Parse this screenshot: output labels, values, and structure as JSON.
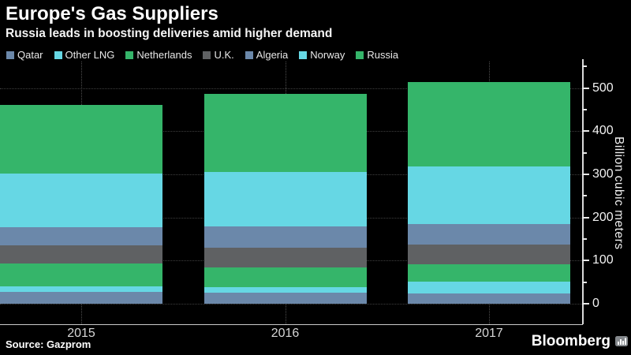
{
  "header": {
    "title": "Europe's Gas Suppliers",
    "subtitle": "Russia leads in boosting deliveries amid higher demand"
  },
  "palette": {
    "slate_blue": "#6b88aa",
    "cyan": "#66d7e4",
    "green": "#35b56a",
    "gray": "#5f6163",
    "background": "#000000",
    "gridline": "#3f3f3f",
    "axis": "#d9d9d9"
  },
  "chart_data": {
    "type": "bar",
    "stacked": true,
    "title": "Europe's Gas Suppliers",
    "subtitle": "Russia leads in boosting deliveries amid higher demand",
    "categories": [
      "2015",
      "2016",
      "2017"
    ],
    "series": [
      {
        "name": "Qatar",
        "color": "#6b88aa",
        "values": [
          27,
          25,
          24
        ]
      },
      {
        "name": "Other LNG",
        "color": "#66d7e4",
        "values": [
          14,
          14,
          28
        ]
      },
      {
        "name": "Netherlands",
        "color": "#35b56a",
        "values": [
          52,
          46,
          39
        ]
      },
      {
        "name": "U.K.",
        "color": "#5f6163",
        "values": [
          43,
          44,
          46
        ]
      },
      {
        "name": "Algeria",
        "color": "#6b88aa",
        "values": [
          41,
          51,
          47
        ]
      },
      {
        "name": "Norway",
        "color": "#66d7e4",
        "values": [
          124,
          125,
          134
        ]
      },
      {
        "name": "Russia",
        "color": "#35b56a",
        "values": [
          160,
          181,
          196
        ]
      }
    ],
    "totals": [
      461,
      486,
      514
    ],
    "xlabel": "",
    "ylabel": "Billion cubic meters",
    "ylim": [
      0,
      550
    ],
    "yticks": [
      0,
      100,
      200,
      300,
      400,
      500
    ],
    "yticks_minor": [
      50,
      150,
      250,
      350,
      450,
      550
    ],
    "grid": "horizontal-dotted",
    "legend_position": "top-left",
    "y_axis_side": "right"
  },
  "footer": {
    "source": "Source: Gazprom",
    "brand": "Bloomberg"
  }
}
